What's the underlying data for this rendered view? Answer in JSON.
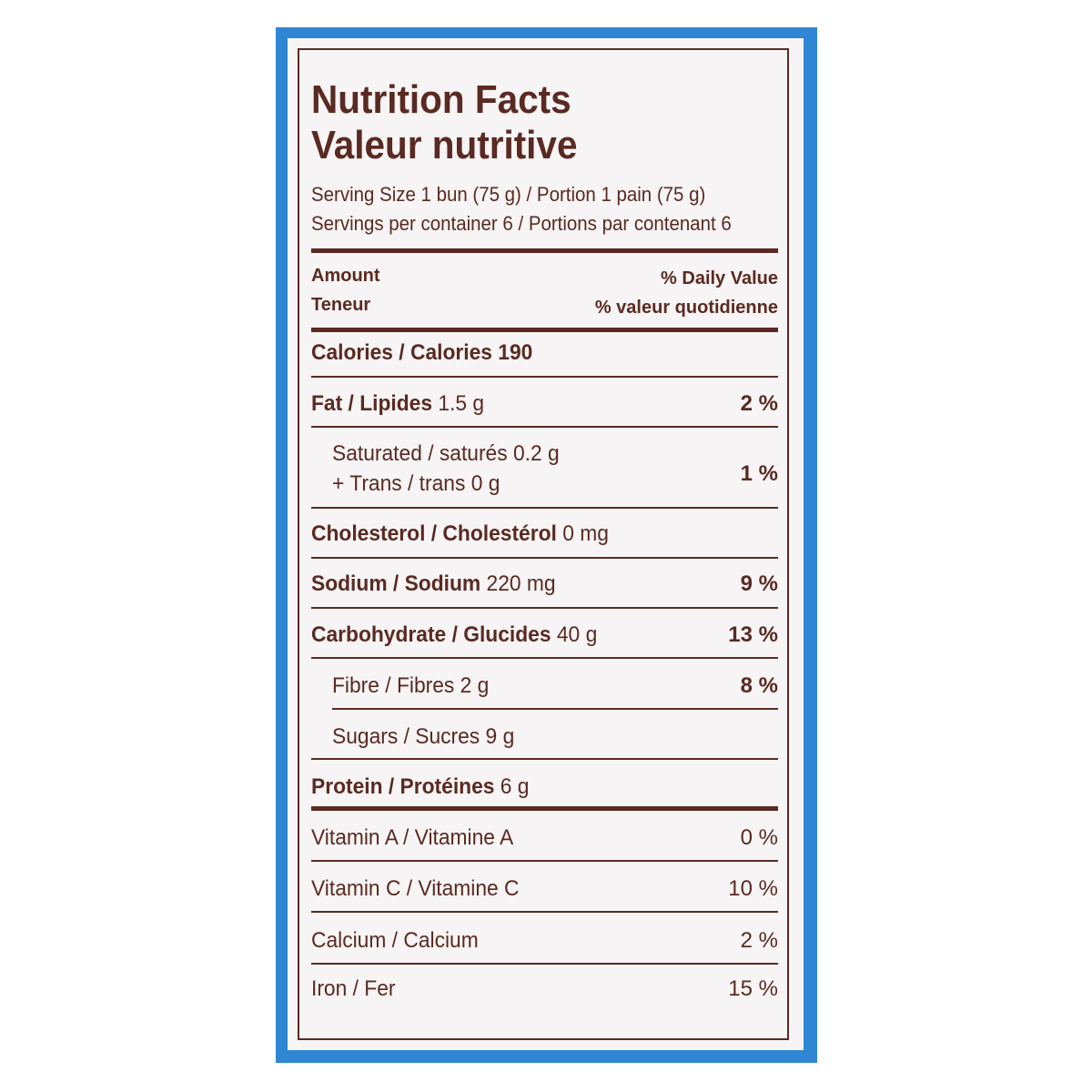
{
  "title_en": "Nutrition Facts",
  "title_fr": "Valeur nutritive",
  "serving_size": "Serving Size 1 bun (75 g) / Portion 1 pain (75 g)",
  "servings_per": "Servings per container 6 / Portions par contenant 6",
  "header": {
    "amount": "Amount",
    "teneur": "Teneur",
    "dv": "% Daily Value",
    "dv_fr": "% valeur quotidienne"
  },
  "calories": "Calories / Calories 190",
  "rows": [
    {
      "label": "Fat / Lipides",
      "amount": "1.5 g",
      "dv": "2 %"
    },
    {
      "label": "Saturated / saturés",
      "amount": "0.2 g"
    },
    {
      "label": "+ Trans / trans",
      "amount": "0 g",
      "dv": "1 %"
    },
    {
      "label": "Cholesterol / Cholestérol",
      "amount": "0 mg"
    },
    {
      "label": "Sodium / Sodium",
      "amount": "220 mg",
      "dv": "9 %"
    },
    {
      "label": "Carbohydrate / Glucides",
      "amount": "40 g",
      "dv": "13 %"
    },
    {
      "label": "Fibre / Fibres",
      "amount": "2 g",
      "dv": "8 %"
    },
    {
      "label": "Sugars / Sucres",
      "amount": "9 g"
    },
    {
      "label": "Protein / Protéines",
      "amount": "6 g"
    }
  ],
  "vitamins": [
    {
      "label": "Vitamin A / Vitamine A",
      "dv": "0 %"
    },
    {
      "label": "Vitamin C / Vitamine C",
      "dv": "10 %"
    },
    {
      "label": "Calcium / Calcium",
      "dv": "2 %"
    },
    {
      "label": "Iron / Fer",
      "dv": "15 %"
    }
  ],
  "colors": {
    "ink": "#5a2a22",
    "package_blue": "#2f86d3",
    "label_bg": "#f6f4f4"
  }
}
